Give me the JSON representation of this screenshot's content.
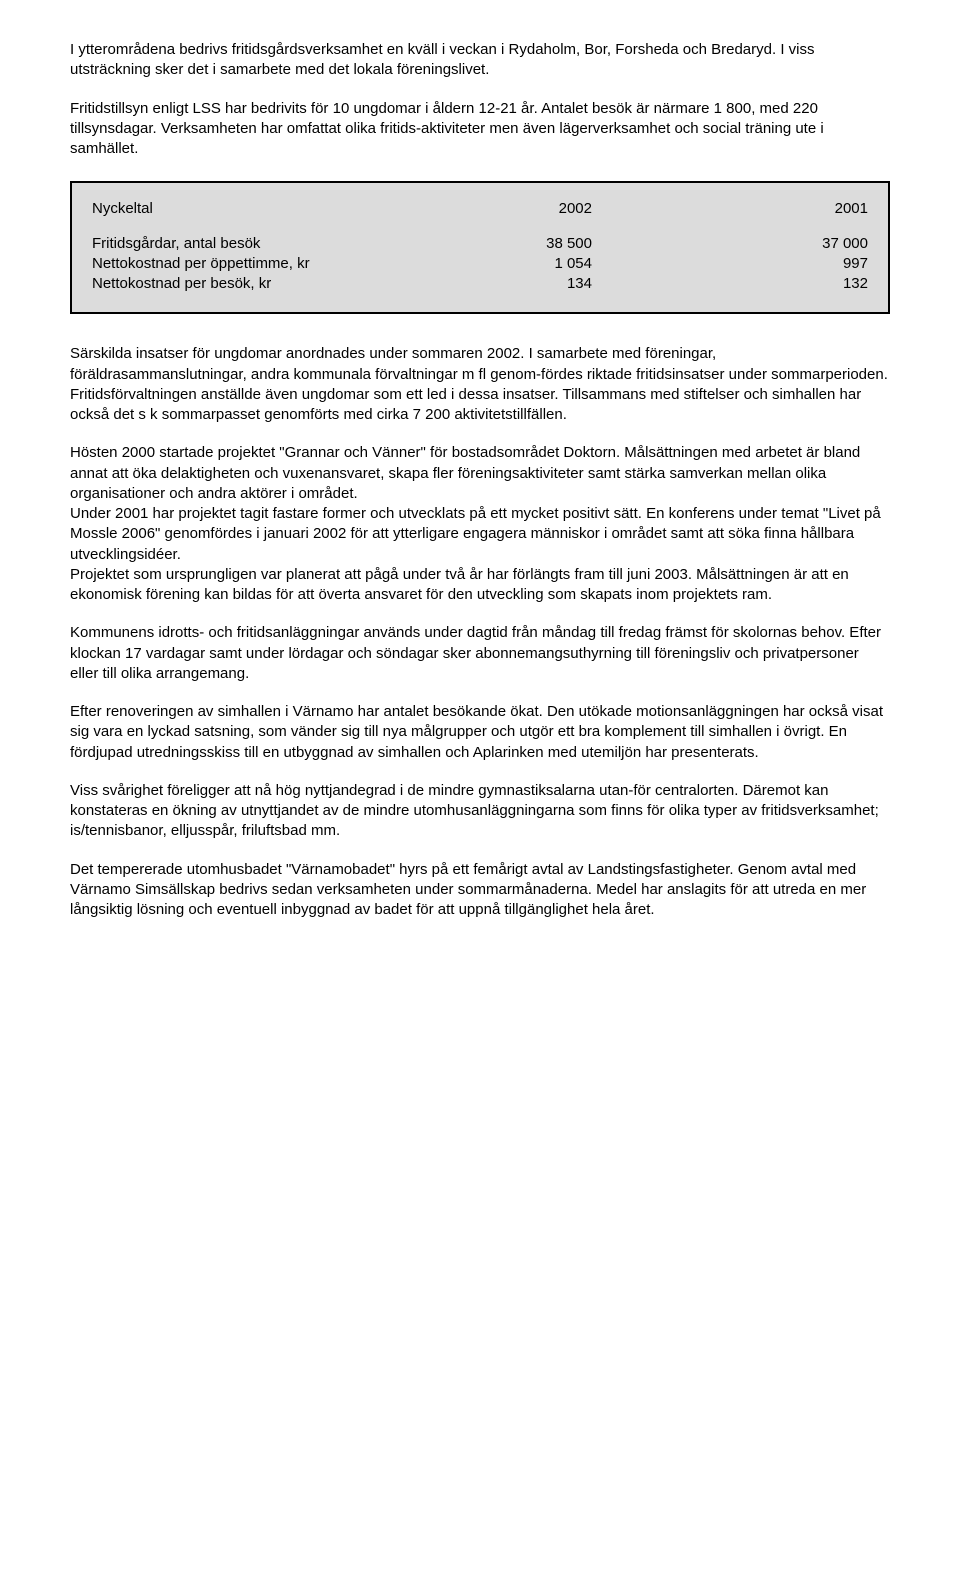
{
  "para1": "I ytterområdena bedrivs fritidsgårdsverksamhet en kväll i veckan i Rydaholm, Bor, Forsheda och Bredaryd. I viss utsträckning sker det i samarbete med det lokala föreningslivet.",
  "para2": "Fritidstillsyn enligt LSS har bedrivits för 10 ungdomar i åldern 12-21 år. Antalet besök är närmare 1 800, med 220 tillsynsdagar. Verksamheten har omfattat olika fritids-aktiviteter men även lägerverksamhet och social träning ute i samhället.",
  "table": {
    "background_color": "#dcdcdc",
    "border_color": "#000000",
    "header": {
      "label": "Nyckeltal",
      "c2002": "2002",
      "c2001": "2001"
    },
    "rows": [
      {
        "label": "Fritidsgårdar, antal besök",
        "c2002": "38 500",
        "c2001": "37 000"
      },
      {
        "label": "Nettokostnad per öppettimme, kr",
        "c2002": "1 054",
        "c2001": "997"
      },
      {
        "label": "Nettokostnad per besök, kr",
        "c2002": "134",
        "c2001": "132"
      }
    ]
  },
  "para3": "Särskilda insatser för ungdomar anordnades under sommaren 2002. I samarbete med föreningar, föräldrasammanslutningar, andra kommunala förvaltningar m fl genom-fördes riktade fritidsinsatser under sommarperioden. Fritidsförvaltningen anställde även ungdomar som ett led i dessa insatser. Tillsammans med stiftelser och simhallen har också det s k sommarpasset genomförts med cirka 7 200 aktivitetstillfällen.",
  "para4a": "Hösten 2000 startade projektet \"Grannar och Vänner\" för bostadsområdet Doktorn. Målsättningen med arbetet är bland annat att öka delaktigheten och vuxenansvaret, skapa fler föreningsaktiviteter samt stärka samverkan mellan olika organisationer och andra aktörer i området.",
  "para4b": "Under 2001 har projektet tagit fastare former och utvecklats på ett mycket positivt sätt. En konferens under temat \"Livet på Mossle 2006\" genomfördes i januari 2002 för att ytterligare engagera människor i området samt att söka finna hållbara utvecklingsidéer.",
  "para4c": "Projektet som ursprungligen var planerat att pågå under två år har förlängts fram till juni 2003. Målsättningen är att en ekonomisk förening kan bildas för att överta ansvaret för den utveckling som skapats inom projektets ram.",
  "para5": "Kommunens idrotts- och fritidsanläggningar används under dagtid från måndag till fredag främst för skolornas behov. Efter klockan 17 vardagar samt under lördagar och söndagar sker abonnemangsuthyrning till föreningsliv och privatpersoner eller till olika arrangemang.",
  "para6": "Efter renoveringen av simhallen i Värnamo har antalet besökande ökat. Den utökade motionsanläggningen har också visat sig vara en lyckad satsning, som vänder sig till nya målgrupper och utgör ett bra komplement till simhallen i övrigt. En fördjupad utredningsskiss till en utbyggnad av simhallen och Aplarinken med utemiljön har presenterats.",
  "para7": "Viss svårighet föreligger att nå hög nyttjandegrad i de mindre gymnastiksalarna utan-för centralorten. Däremot kan konstateras en ökning av utnyttjandet av de mindre utomhusanläggningarna som finns för olika typer av fritidsverksamhet; is/tennisbanor, elljusspår, friluftsbad mm.",
  "para8": "Det tempererade utomhusbadet \"Värnamobadet\" hyrs på ett femårigt avtal av Landstingsfastigheter. Genom avtal med Värnamo Simsällskap bedrivs sedan verksamheten under sommarmånaderna. Medel har anslagits för att utreda en mer långsiktig lösning och eventuell inbyggnad av badet för att uppnå tillgänglighet hela året."
}
